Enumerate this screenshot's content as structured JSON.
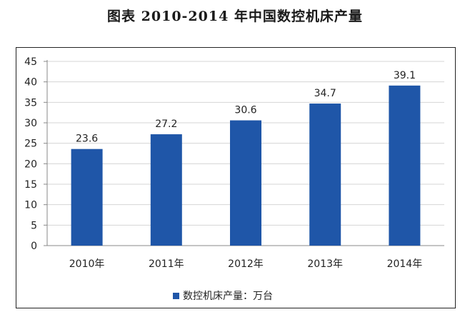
{
  "figure": {
    "title": "图表    2010-2014 年中国数控机床产量"
  },
  "chart_data": {
    "type": "bar",
    "title": "图表    2010-2014 年中国数控机床产量",
    "categories": [
      "2010年",
      "2011年",
      "2012年",
      "2013年",
      "2014年"
    ],
    "series": [
      {
        "name": "数控机床产量：万台",
        "values": [
          23.6,
          27.2,
          30.6,
          34.7,
          39.1
        ],
        "color": "#1f56a8"
      }
    ],
    "data_labels": [
      "23.6",
      "27.2",
      "30.6",
      "34.7",
      "39.1"
    ],
    "y_ticks": [
      "0",
      "5",
      "10",
      "15",
      "20",
      "25",
      "30",
      "35",
      "40",
      "45"
    ],
    "ylim": [
      0,
      45
    ],
    "grid": true,
    "gridline_color": "#d4d4d4",
    "legend_position": "bottom",
    "xlabel": "",
    "ylabel": ""
  }
}
